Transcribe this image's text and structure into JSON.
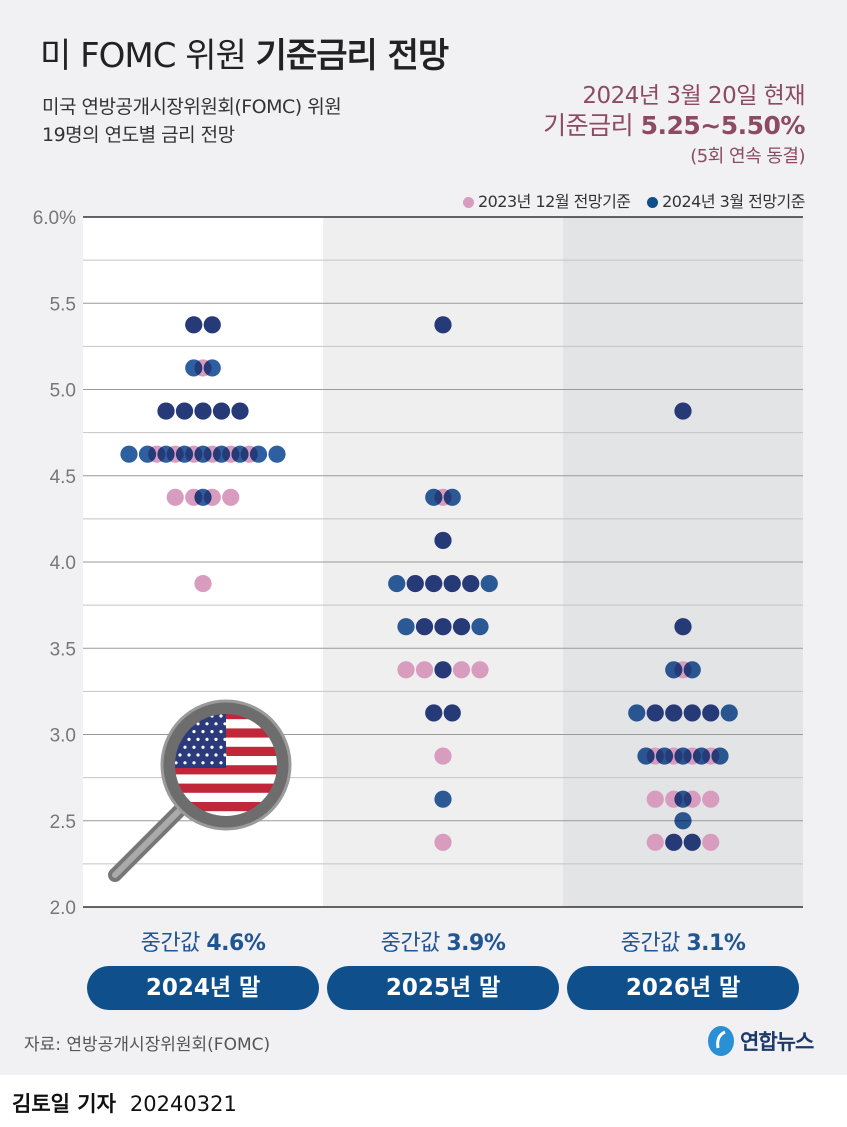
{
  "header": {
    "title_prefix": "미 FOMC 위원",
    "title_bold": "기준금리 전망",
    "subtitle_line1": "미국 연방공개시장위원회(FOMC) 위원",
    "subtitle_line2": "19명의 연도별 금리 전망",
    "note_line1": "2024년 3월 20일 현재",
    "note_line2_prefix": "기준금리",
    "note_line2_value": "5.25~5.50%",
    "note_line3": "(5회 연속 동결)"
  },
  "chart_data": {
    "type": "scatter",
    "subtype": "dot-plot",
    "ylim": [
      2.0,
      6.0
    ],
    "yticks": [
      "6.0%",
      "5.5",
      "5.0",
      "4.5",
      "4.0",
      "3.5",
      "3.0",
      "2.5",
      "2.0"
    ],
    "grid": true,
    "legend_position": "top-right",
    "colors": {
      "dec2023": "#d89cbf",
      "mar2024": "#2e5fa0"
    },
    "categories": [
      "2024년 말",
      "2025년 말",
      "2026년 말"
    ],
    "medians": [
      "4.6%",
      "3.9%",
      "3.1%"
    ],
    "median_label": "중간값",
    "series": [
      {
        "name": "2023년 12월 전망기준",
        "key": "dec2023",
        "counts": [
          {
            "5.375": 2,
            "5.125": 1,
            "4.875": 5,
            "4.625": 6,
            "4.375": 4,
            "3.875": 1
          },
          {
            "5.375": 1,
            "4.375": 1,
            "4.125": 1,
            "3.875": 4,
            "3.625": 3,
            "3.375": 5,
            "3.125": 2,
            "2.875": 1,
            "2.375": 1
          },
          {
            "4.875": 1,
            "3.625": 1,
            "3.375": 1,
            "3.125": 4,
            "2.875": 4,
            "2.625": 4,
            "2.375": 4
          }
        ]
      },
      {
        "name": "2024년 3월 전망기준",
        "key": "mar2024",
        "counts": [
          {
            "5.375": 2,
            "5.125": 2,
            "4.875": 5,
            "4.625": 9,
            "4.375": 1
          },
          {
            "5.375": 1,
            "4.375": 2,
            "4.125": 1,
            "3.875": 6,
            "3.625": 5,
            "3.375": 1,
            "3.125": 2,
            "2.625": 1
          },
          {
            "4.875": 1,
            "3.625": 1,
            "3.375": 2,
            "3.125": 6,
            "2.875": 5,
            "2.625": 1,
            "2.5": 1,
            "2.375": 2
          }
        ]
      }
    ]
  },
  "footer": {
    "source": "자료: 연방공개시장위원회(FOMC)",
    "logo_text": "연합뉴스",
    "reporter": "김토일 기자",
    "date": "20240321"
  }
}
